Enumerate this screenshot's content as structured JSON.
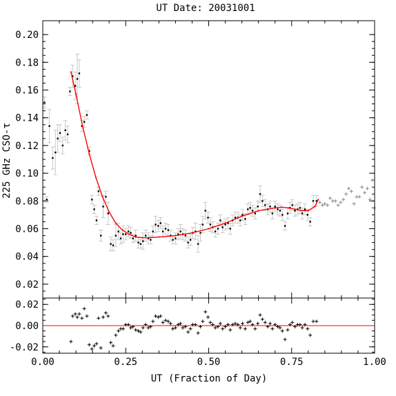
{
  "chart_data": [
    {
      "type": "scatter",
      "title": "UT Date: 20031001",
      "xlabel": "",
      "ylabel": "225 GHz CSO-τ",
      "xlim": [
        0.0,
        1.0
      ],
      "ylim": [
        0.01,
        0.21
      ],
      "yticks": [
        0.02,
        0.04,
        0.06,
        0.08,
        0.1,
        0.12,
        0.14,
        0.16,
        0.18,
        0.2
      ],
      "ytick_labels": [
        "0.02",
        "0.04",
        "0.06",
        "0.08",
        "0.10",
        "0.12",
        "0.14",
        "0.16",
        "0.18",
        "0.20"
      ],
      "series": [
        {
          "color": "#000000",
          "errorbar_color": "#c8c8c8",
          "points": [
            {
              "x": 0.005,
              "y": 0.151,
              "err": 0.004
            },
            {
              "x": 0.012,
              "y": 0.081,
              "err": 0.002
            },
            {
              "x": 0.02,
              "y": 0.134,
              "err": 0.012
            },
            {
              "x": 0.03,
              "y": 0.111,
              "err": 0.008
            },
            {
              "x": 0.038,
              "y": 0.115,
              "err": 0.016
            },
            {
              "x": 0.045,
              "y": 0.125,
              "err": 0.01
            },
            {
              "x": 0.052,
              "y": 0.129,
              "err": 0.006
            },
            {
              "x": 0.06,
              "y": 0.12,
              "err": 0.006
            },
            {
              "x": 0.068,
              "y": 0.131,
              "err": 0.007
            },
            {
              "x": 0.075,
              "y": 0.128,
              "err": 0.006
            },
            {
              "x": 0.082,
              "y": 0.159,
              "err": 0.003
            },
            {
              "x": 0.09,
              "y": 0.17,
              "err": 0.008
            },
            {
              "x": 0.098,
              "y": 0.163,
              "err": 0.01
            },
            {
              "x": 0.104,
              "y": 0.168,
              "err": 0.018
            },
            {
              "x": 0.11,
              "y": 0.172,
              "err": 0.01
            },
            {
              "x": 0.118,
              "y": 0.134,
              "err": 0.004
            },
            {
              "x": 0.125,
              "y": 0.137,
              "err": 0.004
            },
            {
              "x": 0.133,
              "y": 0.142,
              "err": 0.003
            },
            {
              "x": 0.14,
              "y": 0.116,
              "err": 0.003
            },
            {
              "x": 0.148,
              "y": 0.081,
              "err": 0.003
            },
            {
              "x": 0.155,
              "y": 0.074,
              "err": 0.003
            },
            {
              "x": 0.162,
              "y": 0.066,
              "err": 0.003
            },
            {
              "x": 0.168,
              "y": 0.087,
              "err": 0.003
            },
            {
              "x": 0.175,
              "y": 0.055,
              "err": 0.004
            },
            {
              "x": 0.182,
              "y": 0.076,
              "err": 0.008
            },
            {
              "x": 0.19,
              "y": 0.083,
              "err": 0.004
            },
            {
              "x": 0.197,
              "y": 0.071,
              "err": 0.008
            },
            {
              "x": 0.205,
              "y": 0.049,
              "err": 0.005
            },
            {
              "x": 0.212,
              "y": 0.048,
              "err": 0.004
            },
            {
              "x": 0.22,
              "y": 0.055,
              "err": 0.008
            },
            {
              "x": 0.228,
              "y": 0.058,
              "err": 0.006
            },
            {
              "x": 0.235,
              "y": 0.053,
              "err": 0.004
            },
            {
              "x": 0.242,
              "y": 0.056,
              "err": 0.006
            },
            {
              "x": 0.25,
              "y": 0.056,
              "err": 0.004
            },
            {
              "x": 0.258,
              "y": 0.058,
              "err": 0.004
            },
            {
              "x": 0.265,
              "y": 0.057,
              "err": 0.004
            },
            {
              "x": 0.272,
              "y": 0.053,
              "err": 0.003
            },
            {
              "x": 0.28,
              "y": 0.055,
              "err": 0.004
            },
            {
              "x": 0.288,
              "y": 0.05,
              "err": 0.004
            },
            {
              "x": 0.295,
              "y": 0.049,
              "err": 0.003
            },
            {
              "x": 0.302,
              "y": 0.051,
              "err": 0.006
            },
            {
              "x": 0.31,
              "y": 0.055,
              "err": 0.004
            },
            {
              "x": 0.318,
              "y": 0.053,
              "err": 0.004
            },
            {
              "x": 0.325,
              "y": 0.052,
              "err": 0.003
            },
            {
              "x": 0.332,
              "y": 0.058,
              "err": 0.004
            },
            {
              "x": 0.34,
              "y": 0.063,
              "err": 0.006
            },
            {
              "x": 0.348,
              "y": 0.062,
              "err": 0.004
            },
            {
              "x": 0.355,
              "y": 0.064,
              "err": 0.004
            },
            {
              "x": 0.362,
              "y": 0.058,
              "err": 0.004
            },
            {
              "x": 0.37,
              "y": 0.06,
              "err": 0.004
            },
            {
              "x": 0.378,
              "y": 0.059,
              "err": 0.004
            },
            {
              "x": 0.385,
              "y": 0.055,
              "err": 0.004
            },
            {
              "x": 0.392,
              "y": 0.052,
              "err": 0.003
            },
            {
              "x": 0.4,
              "y": 0.053,
              "err": 0.004
            },
            {
              "x": 0.408,
              "y": 0.056,
              "err": 0.004
            },
            {
              "x": 0.415,
              "y": 0.058,
              "err": 0.005
            },
            {
              "x": 0.422,
              "y": 0.056,
              "err": 0.004
            },
            {
              "x": 0.43,
              "y": 0.055,
              "err": 0.004
            },
            {
              "x": 0.438,
              "y": 0.05,
              "err": 0.004
            },
            {
              "x": 0.445,
              "y": 0.052,
              "err": 0.004
            },
            {
              "x": 0.452,
              "y": 0.057,
              "err": 0.004
            },
            {
              "x": 0.46,
              "y": 0.058,
              "err": 0.006
            },
            {
              "x": 0.468,
              "y": 0.049,
              "err": 0.006
            },
            {
              "x": 0.475,
              "y": 0.057,
              "err": 0.006
            },
            {
              "x": 0.482,
              "y": 0.063,
              "err": 0.006
            },
            {
              "x": 0.49,
              "y": 0.073,
              "err": 0.006
            },
            {
              "x": 0.498,
              "y": 0.068,
              "err": 0.004
            },
            {
              "x": 0.505,
              "y": 0.063,
              "err": 0.005
            },
            {
              "x": 0.512,
              "y": 0.061,
              "err": 0.004
            },
            {
              "x": 0.52,
              "y": 0.058,
              "err": 0.004
            },
            {
              "x": 0.528,
              "y": 0.06,
              "err": 0.004
            },
            {
              "x": 0.535,
              "y": 0.066,
              "err": 0.004
            },
            {
              "x": 0.542,
              "y": 0.061,
              "err": 0.004
            },
            {
              "x": 0.55,
              "y": 0.063,
              "err": 0.004
            },
            {
              "x": 0.558,
              "y": 0.064,
              "err": 0.004
            },
            {
              "x": 0.565,
              "y": 0.06,
              "err": 0.004
            },
            {
              "x": 0.572,
              "y": 0.066,
              "err": 0.004
            },
            {
              "x": 0.58,
              "y": 0.068,
              "err": 0.004
            },
            {
              "x": 0.588,
              "y": 0.068,
              "err": 0.004
            },
            {
              "x": 0.595,
              "y": 0.066,
              "err": 0.004
            },
            {
              "x": 0.602,
              "y": 0.07,
              "err": 0.004
            },
            {
              "x": 0.61,
              "y": 0.067,
              "err": 0.004
            },
            {
              "x": 0.618,
              "y": 0.074,
              "err": 0.004
            },
            {
              "x": 0.625,
              "y": 0.075,
              "err": 0.004
            },
            {
              "x": 0.632,
              "y": 0.073,
              "err": 0.004
            },
            {
              "x": 0.64,
              "y": 0.071,
              "err": 0.004
            },
            {
              "x": 0.648,
              "y": 0.076,
              "err": 0.004
            },
            {
              "x": 0.655,
              "y": 0.085,
              "err": 0.006
            },
            {
              "x": 0.662,
              "y": 0.08,
              "err": 0.004
            },
            {
              "x": 0.67,
              "y": 0.077,
              "err": 0.004
            },
            {
              "x": 0.678,
              "y": 0.074,
              "err": 0.004
            },
            {
              "x": 0.685,
              "y": 0.076,
              "err": 0.004
            },
            {
              "x": 0.692,
              "y": 0.071,
              "err": 0.004
            },
            {
              "x": 0.7,
              "y": 0.076,
              "err": 0.004
            },
            {
              "x": 0.708,
              "y": 0.074,
              "err": 0.004
            },
            {
              "x": 0.715,
              "y": 0.073,
              "err": 0.004
            },
            {
              "x": 0.722,
              "y": 0.07,
              "err": 0.004
            },
            {
              "x": 0.73,
              "y": 0.062,
              "err": 0.003
            },
            {
              "x": 0.738,
              "y": 0.071,
              "err": 0.004
            },
            {
              "x": 0.745,
              "y": 0.075,
              "err": 0.004
            },
            {
              "x": 0.752,
              "y": 0.077,
              "err": 0.004
            },
            {
              "x": 0.76,
              "y": 0.073,
              "err": 0.004
            },
            {
              "x": 0.768,
              "y": 0.074,
              "err": 0.004
            },
            {
              "x": 0.775,
              "y": 0.075,
              "err": 0.004
            },
            {
              "x": 0.782,
              "y": 0.071,
              "err": 0.004
            },
            {
              "x": 0.79,
              "y": 0.074,
              "err": 0.004
            },
            {
              "x": 0.798,
              "y": 0.07,
              "err": 0.004
            },
            {
              "x": 0.806,
              "y": 0.065,
              "err": 0.003
            },
            {
              "x": 0.815,
              "y": 0.08,
              "err": 0.004
            },
            {
              "x": 0.825,
              "y": 0.08,
              "err": 0.004
            }
          ]
        },
        {
          "color": "#888888",
          "points": [
            {
              "x": 0.835,
              "y": 0.079
            },
            {
              "x": 0.843,
              "y": 0.077
            },
            {
              "x": 0.85,
              "y": 0.078
            },
            {
              "x": 0.858,
              "y": 0.077
            },
            {
              "x": 0.866,
              "y": 0.082
            },
            {
              "x": 0.874,
              "y": 0.08
            },
            {
              "x": 0.882,
              "y": 0.08
            },
            {
              "x": 0.89,
              "y": 0.077
            },
            {
              "x": 0.898,
              "y": 0.079
            },
            {
              "x": 0.906,
              "y": 0.081
            },
            {
              "x": 0.914,
              "y": 0.085
            },
            {
              "x": 0.922,
              "y": 0.089
            },
            {
              "x": 0.93,
              "y": 0.087
            },
            {
              "x": 0.938,
              "y": 0.078
            },
            {
              "x": 0.946,
              "y": 0.083
            },
            {
              "x": 0.954,
              "y": 0.083
            },
            {
              "x": 0.962,
              "y": 0.09
            },
            {
              "x": 0.97,
              "y": 0.086
            },
            {
              "x": 0.978,
              "y": 0.089
            },
            {
              "x": 0.986,
              "y": 0.081
            },
            {
              "x": 0.993,
              "y": 0.095
            },
            {
              "x": 0.999,
              "y": 0.075
            }
          ]
        }
      ],
      "fit": {
        "color": "#ff0000",
        "x_start": 0.085,
        "x_end": 0.83,
        "x": [
          0.085,
          0.1,
          0.12,
          0.14,
          0.16,
          0.18,
          0.2,
          0.22,
          0.24,
          0.26,
          0.28,
          0.3,
          0.32,
          0.35,
          0.4,
          0.45,
          0.5,
          0.55,
          0.6,
          0.65,
          0.7,
          0.72,
          0.74,
          0.76,
          0.78,
          0.8,
          0.82,
          0.83
        ],
        "y": [
          0.173,
          0.157,
          0.134,
          0.114,
          0.097,
          0.083,
          0.072,
          0.064,
          0.059,
          0.056,
          0.054,
          0.0535,
          0.0535,
          0.054,
          0.055,
          0.057,
          0.06,
          0.064,
          0.069,
          0.073,
          0.075,
          0.0755,
          0.075,
          0.074,
          0.073,
          0.073,
          0.076,
          0.081
        ]
      }
    },
    {
      "type": "scatter",
      "title": "",
      "xlabel": "UT (Fraction of Day)",
      "ylabel": "",
      "xlim": [
        0.0,
        1.0
      ],
      "ylim": [
        -0.026,
        0.026
      ],
      "yticks": [
        -0.02,
        0.0,
        0.02
      ],
      "ytick_labels": [
        "-0.02",
        "0.00",
        "0.02"
      ],
      "xticks": [
        0.0,
        0.25,
        0.5,
        0.75,
        1.0
      ],
      "xtick_labels": [
        "0.00",
        "0.25",
        "0.50",
        "0.75",
        "1.00"
      ],
      "zero_line_color": "#ff0000",
      "residuals": {
        "marker": "+",
        "color": "#000000",
        "x": [
          0.085,
          0.09,
          0.098,
          0.104,
          0.11,
          0.118,
          0.125,
          0.133,
          0.14,
          0.148,
          0.155,
          0.162,
          0.168,
          0.175,
          0.182,
          0.19,
          0.197,
          0.205,
          0.212,
          0.22,
          0.228,
          0.235,
          0.242,
          0.25,
          0.258,
          0.265,
          0.272,
          0.28,
          0.288,
          0.295,
          0.302,
          0.31,
          0.318,
          0.325,
          0.332,
          0.34,
          0.348,
          0.355,
          0.362,
          0.37,
          0.378,
          0.385,
          0.392,
          0.4,
          0.408,
          0.415,
          0.422,
          0.43,
          0.438,
          0.445,
          0.452,
          0.46,
          0.468,
          0.475,
          0.482,
          0.49,
          0.498,
          0.505,
          0.512,
          0.52,
          0.528,
          0.535,
          0.542,
          0.55,
          0.558,
          0.565,
          0.572,
          0.58,
          0.588,
          0.595,
          0.602,
          0.61,
          0.618,
          0.625,
          0.632,
          0.64,
          0.648,
          0.655,
          0.662,
          0.67,
          0.678,
          0.685,
          0.692,
          0.7,
          0.708,
          0.715,
          0.722,
          0.73,
          0.738,
          0.745,
          0.752,
          0.76,
          0.768,
          0.775,
          0.782,
          0.79,
          0.798,
          0.806,
          0.815,
          0.825
        ],
        "y": [
          -0.015,
          0.009,
          0.011,
          0.008,
          0.011,
          0.007,
          0.016,
          0.009,
          -0.018,
          -0.022,
          -0.019,
          -0.017,
          0.007,
          -0.021,
          0.008,
          0.012,
          0.009,
          -0.016,
          -0.019,
          -0.009,
          -0.005,
          -0.003,
          -0.003,
          0.001,
          0.001,
          -0.002,
          -0.001,
          -0.004,
          -0.005,
          -0.006,
          -0.002,
          0.001,
          -0.002,
          -0.001,
          0.004,
          0.009,
          0.008,
          0.009,
          0.003,
          0.005,
          0.004,
          0.002,
          -0.003,
          -0.002,
          0.001,
          0.002,
          -0.002,
          -0.001,
          -0.006,
          -0.003,
          0.001,
          0.001,
          -0.007,
          -0.001,
          0.004,
          0.013,
          0.008,
          0.003,
          0.001,
          -0.002,
          -0.001,
          0.002,
          -0.003,
          -0.001,
          0.001,
          -0.004,
          0.001,
          0.002,
          0.001,
          -0.002,
          0.002,
          -0.003,
          0.003,
          0.004,
          0.001,
          -0.003,
          0.002,
          0.01,
          0.006,
          0.003,
          -0.001,
          0.002,
          -0.003,
          0.001,
          -0.001,
          -0.002,
          -0.005,
          -0.013,
          -0.004,
          0.001,
          0.003,
          -0.001,
          0.001,
          0.001,
          -0.002,
          0.001,
          -0.003,
          -0.009,
          0.004,
          0.004
        ]
      }
    }
  ]
}
